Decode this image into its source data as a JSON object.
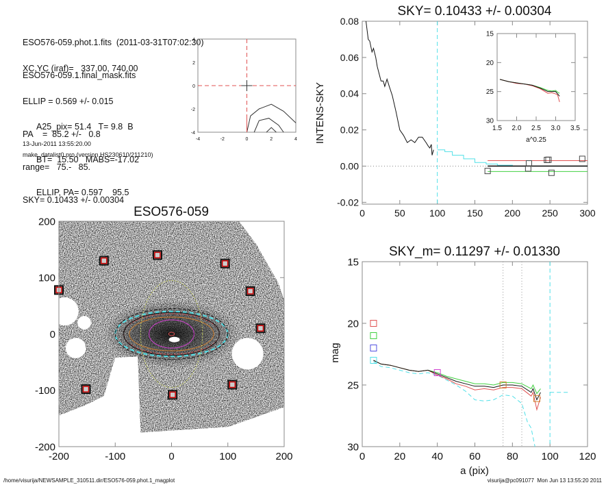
{
  "info": {
    "lines_top": [
      "ESO576-059.phot.1.fits  (2011-03-31T07:02:30)",
      "ESO576-059.1.final_mask.fits"
    ],
    "lines_mid": [
      "XC,YC (iraf)=   337.00, 740.00",
      "ELLIP = 0.569 +/- 0.015",
      "PA    =  85.2 +/-   0.8",
      "range=   75.-   85.",
      "SKY= 0.10433 +/- 0.00304"
    ],
    "lines_low": [
      "A25_pix= 51.4   T= 9.8  B",
      "BT=  15.50   MABS=-17.02",
      "ELLIP, PA= 0.597    95.5"
    ],
    "date": "13-Jun-2011 13:55:20.00",
    "program": "make_datalist0.pro (version HS230610/211210)"
  },
  "footer": {
    "path": "/home/visurija/NEWSAMPLE_310511.dir/ESO576-059.phot.1_magplot",
    "user": "visurija@pc091077  Mon Jun 13 13:55:20 2011"
  },
  "colors": {
    "red": "#e05050",
    "green": "#40d040",
    "blue": "#5050e0",
    "cyan": "#50e0e8",
    "magenta": "#d040d0",
    "orange": "#d08030",
    "black": "#111111",
    "grey": "#999999"
  },
  "chart_data": [
    {
      "id": "center",
      "type": "line",
      "title": "",
      "xlim": [
        -4,
        4
      ],
      "ylim": [
        -4,
        4
      ],
      "xticks": [
        "-4",
        "-2",
        "0",
        "2",
        "4"
      ],
      "yticks": [
        "-4",
        "-2",
        "0",
        "2",
        "4"
      ],
      "contours": [
        [
          [
            0,
            -4
          ],
          [
            0.3,
            -2.6
          ],
          [
            1,
            -2
          ],
          [
            2,
            -1.6
          ],
          [
            3,
            -2.2
          ],
          [
            4,
            -3.2
          ]
        ],
        [
          [
            0.6,
            -4
          ],
          [
            1,
            -3
          ],
          [
            1.8,
            -2.8
          ],
          [
            2.6,
            -3.4
          ],
          [
            3,
            -4
          ]
        ],
        [
          [
            1.6,
            -4
          ],
          [
            2,
            -3.6
          ],
          [
            2.4,
            -4
          ]
        ]
      ]
    },
    {
      "id": "sky",
      "type": "line",
      "title": "SKY= 0.10433 +/- 0.00304",
      "xlabel": "",
      "ylabel": "INTENS-SKY",
      "xlim": [
        0,
        300
      ],
      "ylim": [
        -0.021,
        0.08
      ],
      "xticks": [
        0,
        50,
        100,
        150,
        200,
        250,
        300
      ],
      "xtick_labels": [
        "0",
        "50",
        "100",
        "150",
        "200",
        "250",
        "300"
      ],
      "yticks": [
        -0.02,
        0,
        0.02,
        0.04,
        0.06,
        0.08
      ],
      "ytick_labels": [
        "-0.02",
        "0.00",
        "0.02",
        "0.04",
        "0.06",
        "0.08"
      ],
      "series": [
        {
          "name": "profile",
          "color": "black",
          "x": [
            5,
            8,
            10,
            13,
            15,
            18,
            20,
            25,
            28,
            30,
            33,
            36,
            40,
            45,
            50,
            55,
            60,
            65,
            70,
            75,
            80,
            85,
            88,
            90,
            92,
            93,
            95
          ],
          "y": [
            0.08,
            0.07,
            0.069,
            0.063,
            0.065,
            0.06,
            0.055,
            0.047,
            0.047,
            0.044,
            0.048,
            0.044,
            0.039,
            0.03,
            0.02,
            0.017,
            0.013,
            0.0145,
            0.013,
            0.016,
            0.016,
            0.013,
            0.011,
            0.01,
            0.012,
            0.006,
            0.009
          ]
        },
        {
          "name": "steps",
          "color": "cyan",
          "step": true,
          "x": [
            100,
            110,
            120,
            135,
            150,
            165,
            180,
            200,
            235
          ],
          "y": [
            0.009,
            0.008,
            0.006,
            0.004,
            0.002,
            0.0012,
            0.0005,
            0.0,
            0.0
          ]
        },
        {
          "name": "sky_plus",
          "color": "red",
          "x": [
            167,
            300
          ],
          "y": [
            0.003,
            0.003
          ]
        },
        {
          "name": "sky",
          "color": "black",
          "x": [
            167,
            300
          ],
          "y": [
            0,
            0
          ],
          "width": 1.6
        },
        {
          "name": "sky_minus",
          "color": "green",
          "x": [
            167,
            300
          ],
          "y": [
            -0.003,
            -0.003
          ]
        }
      ],
      "squares": [
        [
          167,
          -0.0027
        ],
        [
          222,
          0.0015
        ],
        [
          221,
          -0.0013
        ],
        [
          246,
          0.0034
        ],
        [
          248,
          0.0035
        ],
        [
          252,
          -0.0037
        ],
        [
          293,
          0.004
        ]
      ],
      "vlines": [
        {
          "x": 100,
          "color": "cyan",
          "dash": "6,4"
        }
      ],
      "zero_line": true,
      "inset": {
        "xlabel": "a^0.25",
        "xlim": [
          1.5,
          3.5
        ],
        "ylim": [
          15,
          30
        ],
        "xticks": [
          1.5,
          2.0,
          2.5,
          3.0,
          3.5
        ],
        "xtick_labels": [
          "1.5",
          "2.0",
          "2.5",
          "3.0",
          "3.5"
        ],
        "yticks": [
          15,
          20,
          25,
          30
        ],
        "ytick_labels": [
          "15",
          "20",
          "25",
          "30"
        ],
        "series": [
          {
            "name": "green",
            "color": "green",
            "x": [
              1.57,
              1.8,
              2.0,
              2.2,
              2.4,
              2.6,
              2.8,
              2.9,
              3.0,
              3.05,
              3.1
            ],
            "y": [
              22.9,
              23.3,
              23.5,
              23.7,
              23.9,
              24.3,
              24.8,
              24.9,
              24.8,
              25.1,
              25.3
            ]
          },
          {
            "name": "red",
            "color": "red",
            "x": [
              1.57,
              1.8,
              2.0,
              2.2,
              2.4,
              2.6,
              2.8,
              2.9,
              3.0,
              3.05,
              3.1
            ],
            "y": [
              22.9,
              23.3,
              23.6,
              23.7,
              24.0,
              24.5,
              25.3,
              25.2,
              25.4,
              25.6,
              26.8
            ]
          },
          {
            "name": "black",
            "color": "black",
            "x": [
              1.57,
              1.8,
              2.0,
              2.2,
              2.4,
              2.6,
              2.8,
              2.9,
              3.0,
              3.05,
              3.1
            ],
            "y": [
              22.9,
              23.3,
              23.5,
              23.7,
              23.9,
              24.4,
              25.0,
              25.0,
              25.0,
              25.4,
              25.8
            ]
          }
        ]
      }
    },
    {
      "id": "image",
      "type": "scatter",
      "title": "ESO576-059",
      "xlim": [
        -200,
        200
      ],
      "ylim": [
        -200,
        200
      ],
      "xticks": [
        -200,
        -100,
        0,
        100,
        200
      ],
      "xtick_labels": [
        "-200",
        "-100",
        "0",
        "100",
        "200"
      ],
      "yticks": [
        -200,
        -100,
        0,
        100,
        200
      ],
      "ytick_labels": [
        "-200",
        "-100",
        "0",
        "100",
        "200"
      ],
      "sky_boxes": [
        [
          -120,
          130
        ],
        [
          -25,
          140
        ],
        [
          95,
          125
        ],
        [
          -200,
          78
        ],
        [
          140,
          76
        ],
        [
          158,
          10
        ],
        [
          -152,
          -98
        ],
        [
          2,
          -108
        ],
        [
          108,
          -90
        ]
      ],
      "ellipses": [
        {
          "a": 100,
          "b": 40,
          "color": "cyan",
          "dash": "6,4"
        },
        {
          "a": 100,
          "b": 45,
          "color": "black",
          "dash": "4,3"
        },
        {
          "a": 85,
          "b": 36,
          "color": "red",
          "dash": "3,2"
        },
        {
          "a": 75,
          "b": 30,
          "color": "orange"
        },
        {
          "a": 85,
          "b": 38,
          "color": "black"
        },
        {
          "a": 40,
          "b": 25,
          "color": "magenta"
        },
        {
          "a": 55,
          "b": 95,
          "color": "#c8d060",
          "dash": "2,2"
        },
        {
          "a": 5,
          "b": 3,
          "color": "red"
        }
      ]
    },
    {
      "id": "mag",
      "type": "line",
      "title": "SKY_m=  0.11297 +/- 0.01330",
      "xlabel": "a (pix)",
      "ylabel": "mag",
      "xlim": [
        0,
        120
      ],
      "ylim": [
        30,
        15
      ],
      "xticks": [
        0,
        20,
        40,
        60,
        80,
        100,
        120
      ],
      "xtick_labels": [
        "0",
        "20",
        "40",
        "60",
        "80",
        "100",
        "120"
      ],
      "yticks": [
        15,
        20,
        25,
        30
      ],
      "ytick_labels": [
        "15",
        "20",
        "25",
        "30"
      ],
      "series": [
        {
          "name": "cyan",
          "color": "cyan",
          "dash": "6,4",
          "x": [
            6,
            10,
            15,
            20,
            25,
            30,
            35,
            40,
            45,
            50,
            55,
            60,
            65,
            70,
            75,
            80,
            85,
            88,
            90,
            92
          ],
          "y": [
            23.1,
            23.5,
            23.6,
            23.8,
            24.0,
            24.1,
            24.0,
            24.2,
            24.6,
            25.0,
            25.5,
            26.2,
            26.3,
            26.2,
            25.8,
            25.9,
            26.5,
            28,
            28.5,
            30
          ]
        },
        {
          "name": "cyan_sky",
          "color": "cyan",
          "dash": "6,4",
          "x": [
            100,
            110
          ],
          "y": [
            25.6,
            25.6
          ]
        },
        {
          "name": "green",
          "color": "green",
          "x": [
            6,
            10,
            15,
            20,
            25,
            30,
            35,
            40,
            45,
            50,
            55,
            60,
            65,
            70,
            75,
            80,
            85,
            90,
            91,
            93,
            95
          ],
          "y": [
            23.0,
            23.3,
            23.4,
            23.6,
            23.8,
            23.9,
            23.8,
            24.0,
            24.3,
            24.5,
            24.7,
            24.9,
            24.9,
            25.0,
            24.8,
            24.8,
            24.9,
            25.3,
            25.0,
            25.7,
            25.3
          ]
        },
        {
          "name": "red",
          "color": "red",
          "x": [
            6,
            10,
            15,
            20,
            25,
            30,
            35,
            40,
            45,
            50,
            55,
            60,
            65,
            70,
            75,
            80,
            85,
            90,
            91,
            93,
            95
          ],
          "y": [
            23.0,
            23.3,
            23.4,
            23.6,
            23.8,
            23.9,
            23.8,
            24.2,
            24.5,
            24.9,
            25.1,
            25.4,
            25.3,
            25.4,
            25.2,
            25.2,
            25.3,
            25.9,
            25.6,
            27.0,
            26.0
          ]
        },
        {
          "name": "black",
          "color": "black",
          "x": [
            6,
            10,
            15,
            20,
            25,
            30,
            35,
            40,
            45,
            50,
            55,
            60,
            65,
            70,
            75,
            80,
            85,
            90,
            91,
            93,
            95
          ],
          "y": [
            23.0,
            23.3,
            23.4,
            23.6,
            23.8,
            23.9,
            23.8,
            24.1,
            24.4,
            24.7,
            24.9,
            25.1,
            25.1,
            25.2,
            25.0,
            25.0,
            25.1,
            25.6,
            25.3,
            26.2,
            25.6
          ]
        }
      ],
      "squares": [
        [
          6,
          20,
          "red"
        ],
        [
          6,
          21,
          "green"
        ],
        [
          6,
          22,
          "blue"
        ],
        [
          6,
          23,
          "cyan"
        ],
        [
          40,
          24,
          "magenta"
        ],
        [
          75,
          25,
          "orange"
        ],
        [
          93,
          26.1,
          "orange"
        ]
      ],
      "vlines": [
        {
          "x": 75,
          "color": "grey",
          "dash": "1,3"
        },
        {
          "x": 85,
          "color": "grey",
          "dash": "1,3"
        },
        {
          "x": 100,
          "color": "cyan",
          "dash": "6,4"
        }
      ]
    }
  ]
}
